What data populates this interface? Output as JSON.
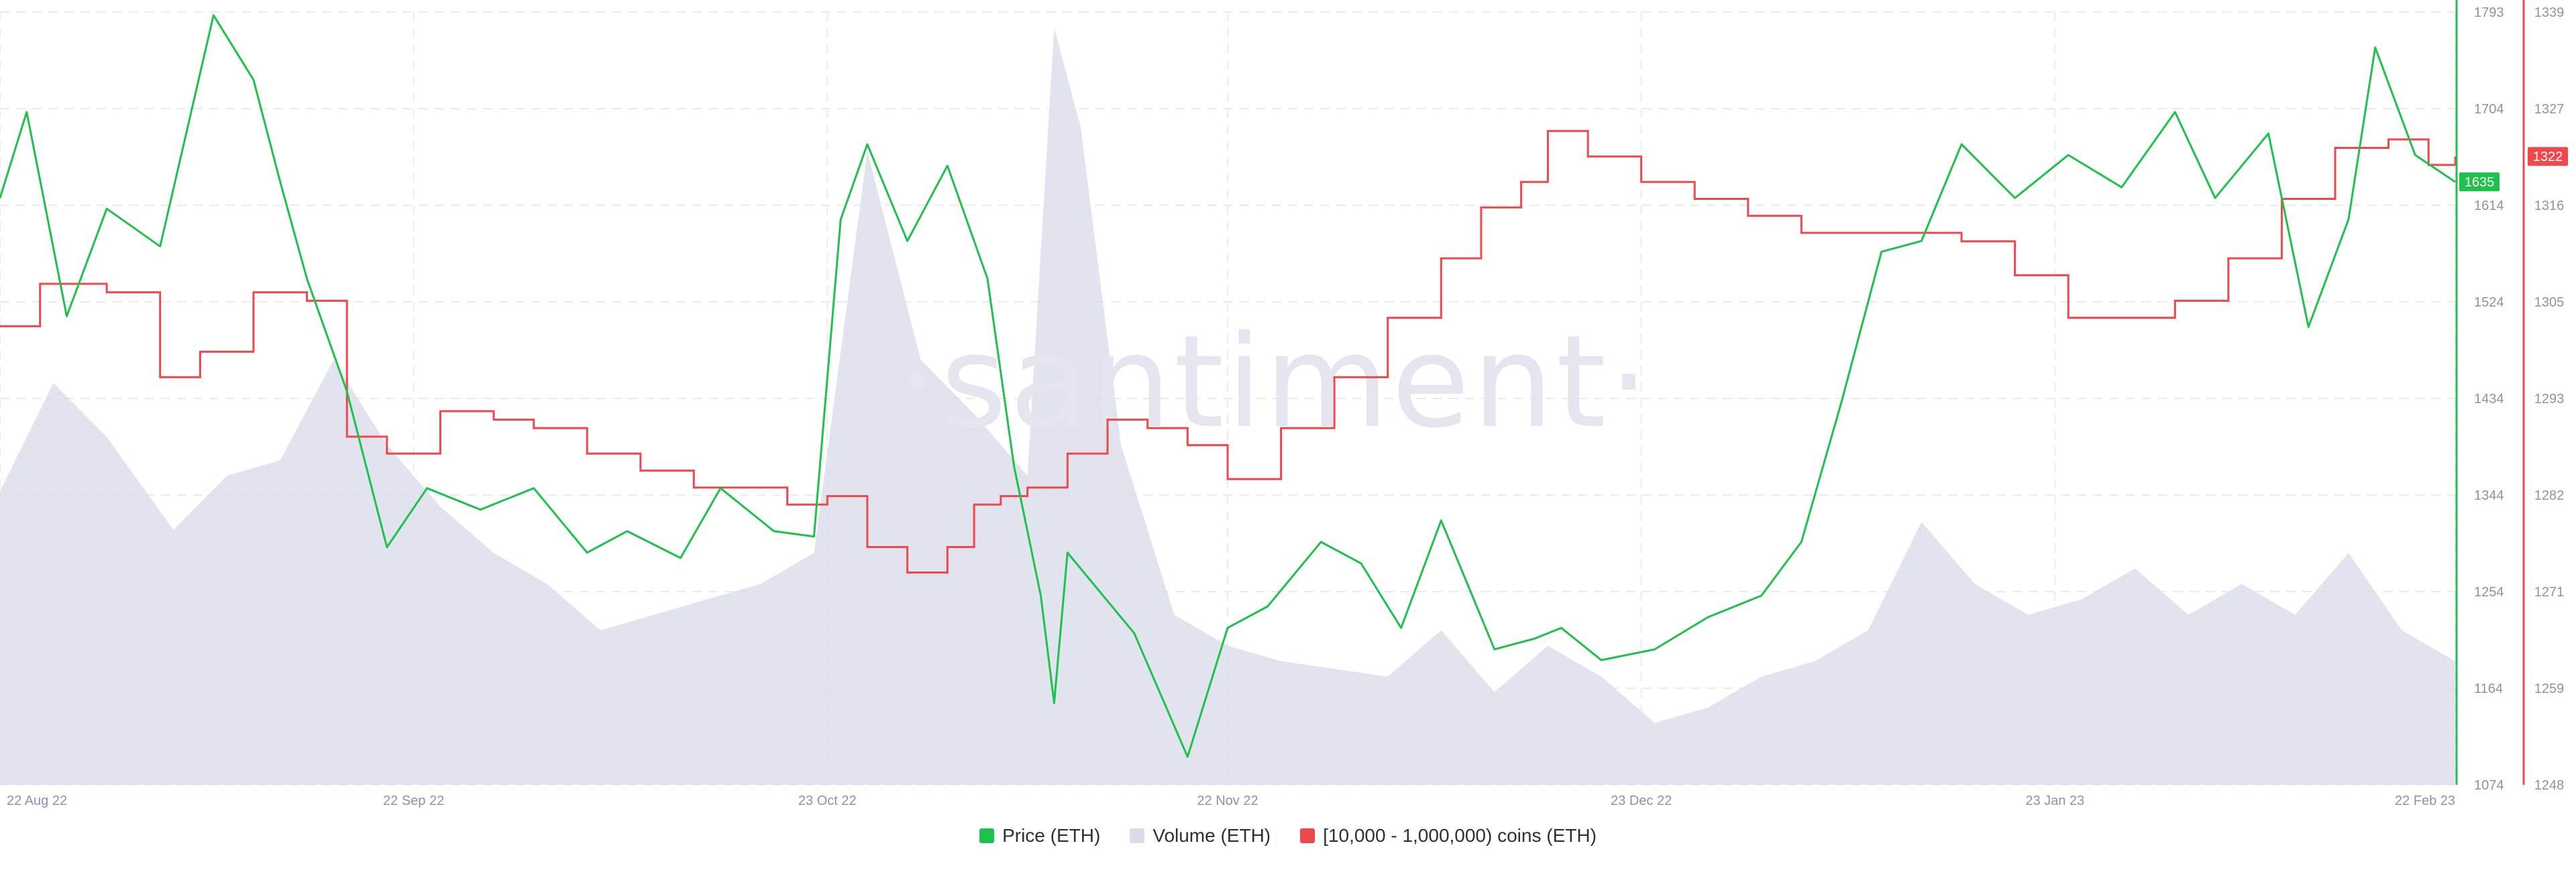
{
  "watermark": "·santiment·",
  "colors": {
    "price": "#1ec14b",
    "volume": "#d9dcea",
    "holders": "#f0474d",
    "grid": "#e9ebf1"
  },
  "legend": [
    {
      "label": "Price (ETH)",
      "color": "#1ec14b"
    },
    {
      "label": "Volume (ETH)",
      "color": "#d9dcea"
    },
    {
      "label": "[10,000 - 1,000,000) coins (ETH)",
      "color": "#f0474d"
    }
  ],
  "chart_data": {
    "type": "line",
    "x_ticks": [
      "22 Aug 22",
      "22 Sep 22",
      "23 Oct 22",
      "22 Nov 22",
      "23 Dec 22",
      "23 Jan 23",
      "22 Feb 23"
    ],
    "price_axis": {
      "ticks": [
        "1793",
        "1704",
        "1614",
        "1524",
        "1434",
        "1344",
        "1254",
        "1164",
        "1074"
      ],
      "range": [
        1074,
        1793
      ],
      "current_label": "1635"
    },
    "holders_axis": {
      "ticks": [
        "1339",
        "1327",
        "1316",
        "1305",
        "1293",
        "1282",
        "1271",
        "1259",
        "1248"
      ],
      "range": [
        1248,
        1339
      ],
      "current_label": "1322"
    },
    "grid": true,
    "series": [
      {
        "name": "Price (ETH)",
        "axis": "price",
        "x": [
          "2022-08-22",
          "2022-08-24",
          "2022-08-27",
          "2022-08-30",
          "2022-09-03",
          "2022-09-07",
          "2022-09-10",
          "2022-09-12",
          "2022-09-14",
          "2022-09-17",
          "2022-09-20",
          "2022-09-23",
          "2022-09-27",
          "2022-10-01",
          "2022-10-05",
          "2022-10-08",
          "2022-10-12",
          "2022-10-15",
          "2022-10-19",
          "2022-10-22",
          "2022-10-24",
          "2022-10-26",
          "2022-10-29",
          "2022-11-01",
          "2022-11-04",
          "2022-11-06",
          "2022-11-08",
          "2022-11-09",
          "2022-11-10",
          "2022-11-12",
          "2022-11-15",
          "2022-11-19",
          "2022-11-22",
          "2022-11-25",
          "2022-11-29",
          "2022-12-02",
          "2022-12-05",
          "2022-12-08",
          "2022-12-12",
          "2022-12-15",
          "2022-12-17",
          "2022-12-20",
          "2022-12-24",
          "2022-12-28",
          "2023-01-01",
          "2023-01-04",
          "2023-01-07",
          "2023-01-10",
          "2023-01-13",
          "2023-01-16",
          "2023-01-20",
          "2023-01-24",
          "2023-01-28",
          "2023-02-01",
          "2023-02-04",
          "2023-02-08",
          "2023-02-11",
          "2023-02-14",
          "2023-02-16",
          "2023-02-19",
          "2023-02-22"
        ],
        "values": [
          1620,
          1700,
          1510,
          1610,
          1575,
          1790,
          1730,
          1635,
          1545,
          1440,
          1295,
          1350,
          1330,
          1350,
          1290,
          1310,
          1285,
          1350,
          1310,
          1305,
          1600,
          1670,
          1580,
          1650,
          1545,
          1370,
          1250,
          1150,
          1290,
          1260,
          1215,
          1100,
          1220,
          1240,
          1300,
          1280,
          1220,
          1320,
          1200,
          1210,
          1220,
          1190,
          1200,
          1230,
          1250,
          1300,
          1430,
          1570,
          1580,
          1670,
          1620,
          1660,
          1630,
          1700,
          1620,
          1680,
          1500,
          1600,
          1760,
          1660,
          1635
        ]
      },
      {
        "name": "[10,000 - 1,000,000) coins (ETH)",
        "axis": "holders",
        "x": [
          "2022-08-22",
          "2022-08-25",
          "2022-08-30",
          "2022-09-03",
          "2022-09-06",
          "2022-09-10",
          "2022-09-14",
          "2022-09-17",
          "2022-09-20",
          "2022-09-24",
          "2022-09-28",
          "2022-10-01",
          "2022-10-05",
          "2022-10-09",
          "2022-10-13",
          "2022-10-16",
          "2022-10-20",
          "2022-10-23",
          "2022-10-26",
          "2022-10-29",
          "2022-11-01",
          "2022-11-03",
          "2022-11-05",
          "2022-11-07",
          "2022-11-10",
          "2022-11-13",
          "2022-11-16",
          "2022-11-19",
          "2022-11-22",
          "2022-11-26",
          "2022-11-30",
          "2022-12-04",
          "2022-12-08",
          "2022-12-11",
          "2022-12-14",
          "2022-12-16",
          "2022-12-19",
          "2022-12-23",
          "2022-12-27",
          "2022-12-31",
          "2023-01-04",
          "2023-01-08",
          "2023-01-12",
          "2023-01-16",
          "2023-01-20",
          "2023-01-24",
          "2023-01-28",
          "2023-02-01",
          "2023-02-05",
          "2023-02-09",
          "2023-02-13",
          "2023-02-17",
          "2023-02-20",
          "2023-02-22"
        ],
        "values": [
          1302,
          1307,
          1306,
          1296,
          1299,
          1306,
          1305,
          1289,
          1287,
          1292,
          1291,
          1290,
          1287,
          1285,
          1283,
          1283,
          1281,
          1282,
          1276,
          1273,
          1276,
          1281,
          1282,
          1283,
          1287,
          1291,
          1290,
          1288,
          1284,
          1290,
          1296,
          1303,
          1310,
          1316,
          1319,
          1325,
          1322,
          1319,
          1317,
          1315,
          1313,
          1313,
          1313,
          1312,
          1308,
          1303,
          1303,
          1305,
          1310,
          1317,
          1323,
          1324,
          1321,
          1322
        ]
      },
      {
        "name": "Volume (ETH)",
        "axis": "none",
        "x": [
          "2022-08-22",
          "2022-08-26",
          "2022-08-30",
          "2022-09-04",
          "2022-09-08",
          "2022-09-12",
          "2022-09-16",
          "2022-09-20",
          "2022-09-24",
          "2022-09-28",
          "2022-10-02",
          "2022-10-06",
          "2022-10-10",
          "2022-10-14",
          "2022-10-18",
          "2022-10-22",
          "2022-10-26",
          "2022-10-30",
          "2022-11-03",
          "2022-11-07",
          "2022-11-09",
          "2022-11-11",
          "2022-11-14",
          "2022-11-18",
          "2022-11-22",
          "2022-11-26",
          "2022-11-30",
          "2022-12-04",
          "2022-12-08",
          "2022-12-12",
          "2022-12-16",
          "2022-12-20",
          "2022-12-24",
          "2022-12-28",
          "2023-01-01",
          "2023-01-05",
          "2023-01-09",
          "2023-01-13",
          "2023-01-17",
          "2023-01-21",
          "2023-01-25",
          "2023-01-29",
          "2023-02-02",
          "2023-02-06",
          "2023-02-10",
          "2023-02-14",
          "2023-02-18",
          "2023-02-22"
        ],
        "values": [
          0.38,
          0.52,
          0.45,
          0.33,
          0.4,
          0.42,
          0.55,
          0.44,
          0.36,
          0.3,
          0.26,
          0.2,
          0.22,
          0.24,
          0.26,
          0.3,
          0.82,
          0.55,
          0.48,
          0.4,
          0.98,
          0.85,
          0.44,
          0.22,
          0.18,
          0.16,
          0.15,
          0.14,
          0.2,
          0.12,
          0.18,
          0.14,
          0.08,
          0.1,
          0.14,
          0.16,
          0.2,
          0.34,
          0.26,
          0.22,
          0.24,
          0.28,
          0.22,
          0.26,
          0.22,
          0.3,
          0.2,
          0.16
        ]
      }
    ]
  }
}
